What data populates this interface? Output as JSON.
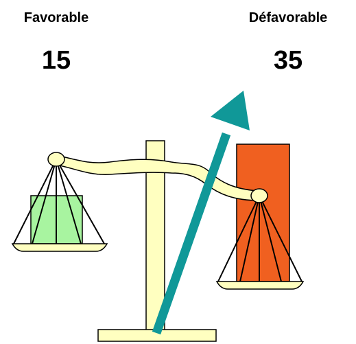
{
  "left": {
    "label": "Favorable",
    "value": "15"
  },
  "right": {
    "label": "Défavorable",
    "value": "35"
  }
}
